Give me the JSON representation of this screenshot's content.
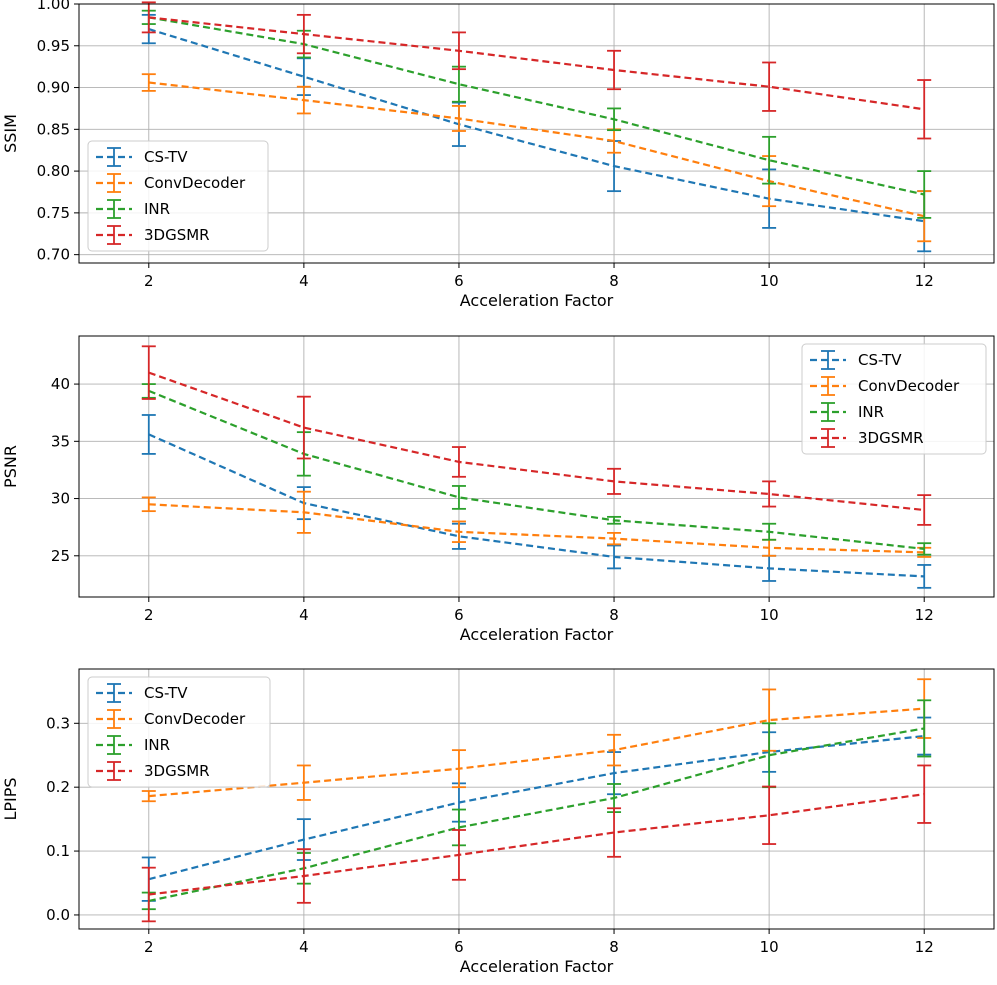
{
  "chart_data": [
    {
      "type": "line",
      "xlabel": "Acceleration Factor",
      "ylabel": "SSIM",
      "x": [
        2,
        4,
        6,
        8,
        10,
        12
      ],
      "xlim": [
        1.1,
        12.9
      ],
      "ylim": [
        0.69,
        1.0
      ],
      "xticks": [
        2,
        4,
        6,
        8,
        10,
        12
      ],
      "xtick_labels": [
        "2",
        "4",
        "6",
        "8",
        "10",
        "12"
      ],
      "yticks": [
        0.7,
        0.75,
        0.8,
        0.85,
        0.9,
        0.95,
        1.0
      ],
      "ytick_labels": [
        "0.70",
        "0.75",
        "0.80",
        "0.85",
        "0.90",
        "0.95",
        "1.00"
      ],
      "grid": true,
      "legend_position": "lower-left",
      "series": [
        {
          "name": "CS-TV",
          "color": "#1f77b4",
          "values": [
            0.97,
            0.913,
            0.856,
            0.806,
            0.767,
            0.74
          ],
          "errors": [
            0.017,
            0.022,
            0.026,
            0.03,
            0.035,
            0.036
          ]
        },
        {
          "name": "ConvDecoder",
          "color": "#ff7f0e",
          "values": [
            0.906,
            0.885,
            0.863,
            0.836,
            0.788,
            0.746
          ],
          "errors": [
            0.01,
            0.016,
            0.015,
            0.014,
            0.03,
            0.03
          ]
        },
        {
          "name": "INR",
          "color": "#2ca02c",
          "values": [
            0.984,
            0.952,
            0.904,
            0.862,
            0.813,
            0.772
          ],
          "errors": [
            0.008,
            0.016,
            0.021,
            0.013,
            0.028,
            0.028
          ]
        },
        {
          "name": "3DGSMR",
          "color": "#d62728",
          "values": [
            0.984,
            0.964,
            0.944,
            0.921,
            0.901,
            0.874
          ],
          "errors": [
            0.018,
            0.023,
            0.022,
            0.023,
            0.029,
            0.035
          ]
        }
      ]
    },
    {
      "type": "line",
      "xlabel": "Acceleration Factor",
      "ylabel": "PSNR",
      "x": [
        2,
        4,
        6,
        8,
        10,
        12
      ],
      "xlim": [
        1.1,
        12.9
      ],
      "ylim": [
        21.4,
        44.2
      ],
      "xticks": [
        2,
        4,
        6,
        8,
        10,
        12
      ],
      "xtick_labels": [
        "2",
        "4",
        "6",
        "8",
        "10",
        "12"
      ],
      "yticks": [
        25,
        30,
        35,
        40
      ],
      "ytick_labels": [
        "25",
        "30",
        "35",
        "40"
      ],
      "grid": true,
      "legend_position": "upper-right",
      "series": [
        {
          "name": "CS-TV",
          "color": "#1f77b4",
          "values": [
            35.6,
            29.6,
            26.7,
            24.9,
            23.9,
            23.2
          ],
          "errors": [
            1.7,
            1.4,
            1.1,
            1.0,
            1.1,
            1.0
          ]
        },
        {
          "name": "ConvDecoder",
          "color": "#ff7f0e",
          "values": [
            29.5,
            28.8,
            27.1,
            26.5,
            25.7,
            25.3
          ],
          "errors": [
            0.6,
            1.8,
            0.9,
            0.5,
            0.7,
            0.4
          ]
        },
        {
          "name": "INR",
          "color": "#2ca02c",
          "values": [
            39.4,
            33.9,
            30.1,
            28.1,
            27.1,
            25.6
          ],
          "errors": [
            0.6,
            1.9,
            1.0,
            0.3,
            0.7,
            0.5
          ]
        },
        {
          "name": "3DGSMR",
          "color": "#d62728",
          "values": [
            41.0,
            36.2,
            33.2,
            31.5,
            30.4,
            29.0
          ],
          "errors": [
            2.3,
            2.7,
            1.3,
            1.1,
            1.1,
            1.3
          ]
        }
      ]
    },
    {
      "type": "line",
      "xlabel": "Acceleration Factor",
      "ylabel": "LPIPS",
      "x": [
        2,
        4,
        6,
        8,
        10,
        12
      ],
      "xlim": [
        1.1,
        12.9
      ],
      "ylim": [
        -0.022,
        0.385
      ],
      "xticks": [
        2,
        4,
        6,
        8,
        10,
        12
      ],
      "xtick_labels": [
        "2",
        "4",
        "6",
        "8",
        "10",
        "12"
      ],
      "yticks": [
        0.0,
        0.1,
        0.2,
        0.3
      ],
      "ytick_labels": [
        "0.0",
        "0.1",
        "0.2",
        "0.3"
      ],
      "grid": true,
      "legend_position": "upper-left",
      "series": [
        {
          "name": "CS-TV",
          "color": "#1f77b4",
          "values": [
            0.056,
            0.118,
            0.176,
            0.222,
            0.255,
            0.28
          ],
          "errors": [
            0.034,
            0.032,
            0.03,
            0.033,
            0.031,
            0.029
          ]
        },
        {
          "name": "ConvDecoder",
          "color": "#ff7f0e",
          "values": [
            0.186,
            0.207,
            0.229,
            0.258,
            0.305,
            0.323
          ],
          "errors": [
            0.008,
            0.027,
            0.029,
            0.024,
            0.048,
            0.046
          ]
        },
        {
          "name": "INR",
          "color": "#2ca02c",
          "values": [
            0.022,
            0.073,
            0.137,
            0.183,
            0.25,
            0.292
          ],
          "errors": [
            0.013,
            0.024,
            0.028,
            0.022,
            0.05,
            0.044
          ]
        },
        {
          "name": "3DGSMR",
          "color": "#d62728",
          "values": [
            0.032,
            0.061,
            0.094,
            0.129,
            0.156,
            0.189
          ],
          "errors": [
            0.042,
            0.042,
            0.039,
            0.038,
            0.045,
            0.045
          ]
        }
      ]
    }
  ]
}
